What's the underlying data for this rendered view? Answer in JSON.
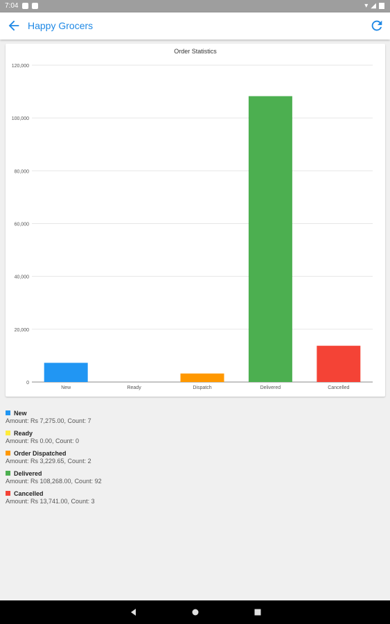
{
  "status_bar": {
    "time": "7:04"
  },
  "app_bar": {
    "title": "Happy Grocers"
  },
  "icons": {
    "back": "arrow-back-icon",
    "refresh": "refresh-icon"
  },
  "colors": {
    "accent": "#1e88e5",
    "new": "#2196f3",
    "ready": "#ffeb3b",
    "dispatch": "#ff9800",
    "delivered": "#4caf50",
    "cancelled": "#f44336"
  },
  "chart_data": {
    "type": "bar",
    "title": "Order Statistics",
    "categories": [
      "New",
      "Ready",
      "Dispatch",
      "Delivered",
      "Cancelled"
    ],
    "values": [
      7275,
      0,
      3229.65,
      108268,
      13741
    ],
    "colors": [
      "#2196f3",
      "#ffeb3b",
      "#ff9800",
      "#4caf50",
      "#f44336"
    ],
    "ylim": [
      0,
      120000
    ],
    "yticks": [
      "0",
      "20,000",
      "40,000",
      "60,000",
      "80,000",
      "100,000",
      "120,000"
    ],
    "grid": true
  },
  "legend": [
    {
      "name": "New",
      "color": "#2196f3",
      "detail": "Amount: Rs 7,275.00,  Count: 7"
    },
    {
      "name": "Ready",
      "color": "#ffeb3b",
      "detail": "Amount: Rs 0.00,  Count: 0"
    },
    {
      "name": "Order Dispatched",
      "color": "#ff9800",
      "detail": "Amount: Rs 3,229.65,  Count: 2"
    },
    {
      "name": "Delivered",
      "color": "#4caf50",
      "detail": "Amount: Rs 108,268.00,  Count: 92"
    },
    {
      "name": "Cancelled",
      "color": "#f44336",
      "detail": "Amount: Rs 13,741.00,  Count: 3"
    }
  ]
}
